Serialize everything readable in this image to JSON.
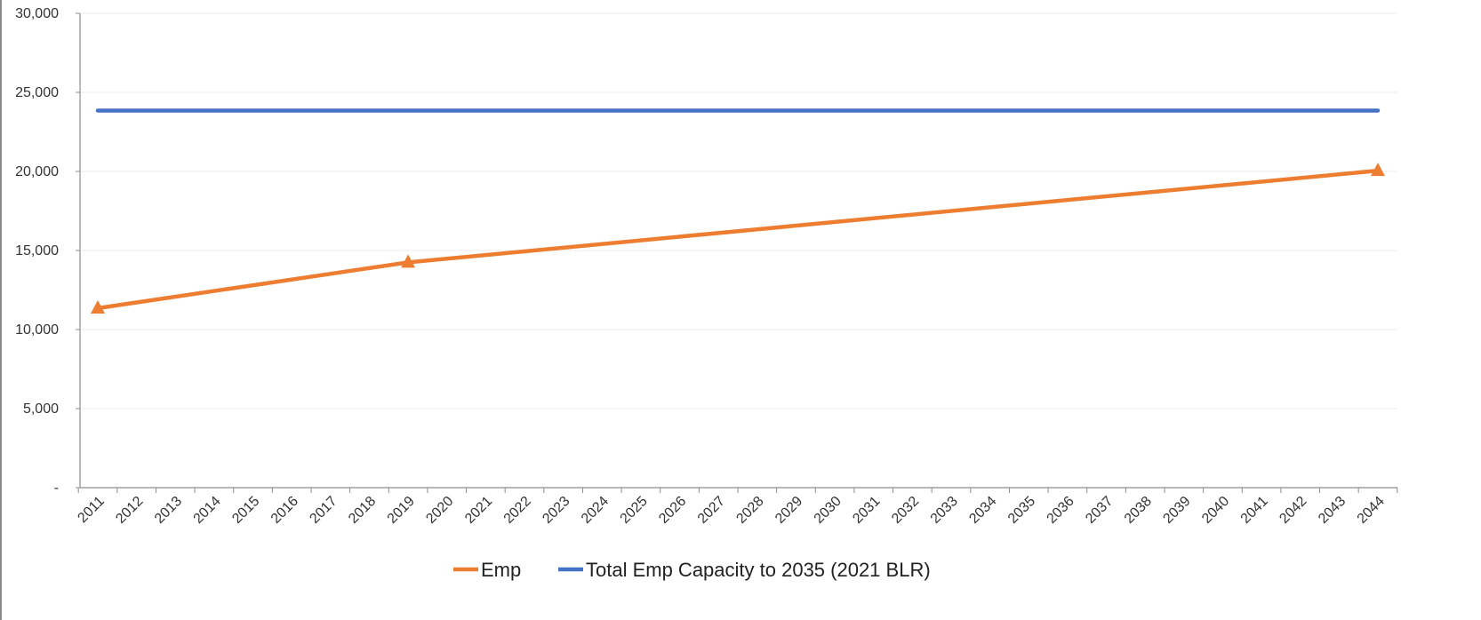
{
  "chart_data": {
    "type": "line",
    "x": [
      2011,
      2019,
      2044
    ],
    "categories": [
      "2011",
      "2012",
      "2013",
      "2014",
      "2015",
      "2016",
      "2017",
      "2018",
      "2019",
      "2020",
      "2021",
      "2022",
      "2023",
      "2024",
      "2025",
      "2026",
      "2027",
      "2028",
      "2029",
      "2030",
      "2031",
      "2032",
      "2033",
      "2034",
      "2035",
      "2036",
      "2037",
      "2038",
      "2039",
      "2040",
      "2041",
      "2042",
      "2043",
      "2044"
    ],
    "series": [
      {
        "name": "Emp",
        "x": [
          2011,
          2019,
          2044
        ],
        "values": [
          11350,
          14250,
          20050
        ],
        "color": "#ED7D31",
        "marker": "triangle"
      },
      {
        "name": "Total Emp Capacity to 2035 (2021 BLR)",
        "x": [
          2011,
          2044
        ],
        "values": [
          23850,
          23850
        ],
        "color": "#4472C4",
        "marker": "none"
      }
    ],
    "y_ticks": [
      {
        "value": 0,
        "label": "-"
      },
      {
        "value": 5000,
        "label": "5,000"
      },
      {
        "value": 10000,
        "label": "10,000"
      },
      {
        "value": 15000,
        "label": "15,000"
      },
      {
        "value": 20000,
        "label": "20,000"
      },
      {
        "value": 25000,
        "label": "25,000"
      },
      {
        "value": 30000,
        "label": "30,000"
      }
    ],
    "ylim": [
      0,
      30000
    ],
    "grid": true,
    "legend": "bottom"
  }
}
